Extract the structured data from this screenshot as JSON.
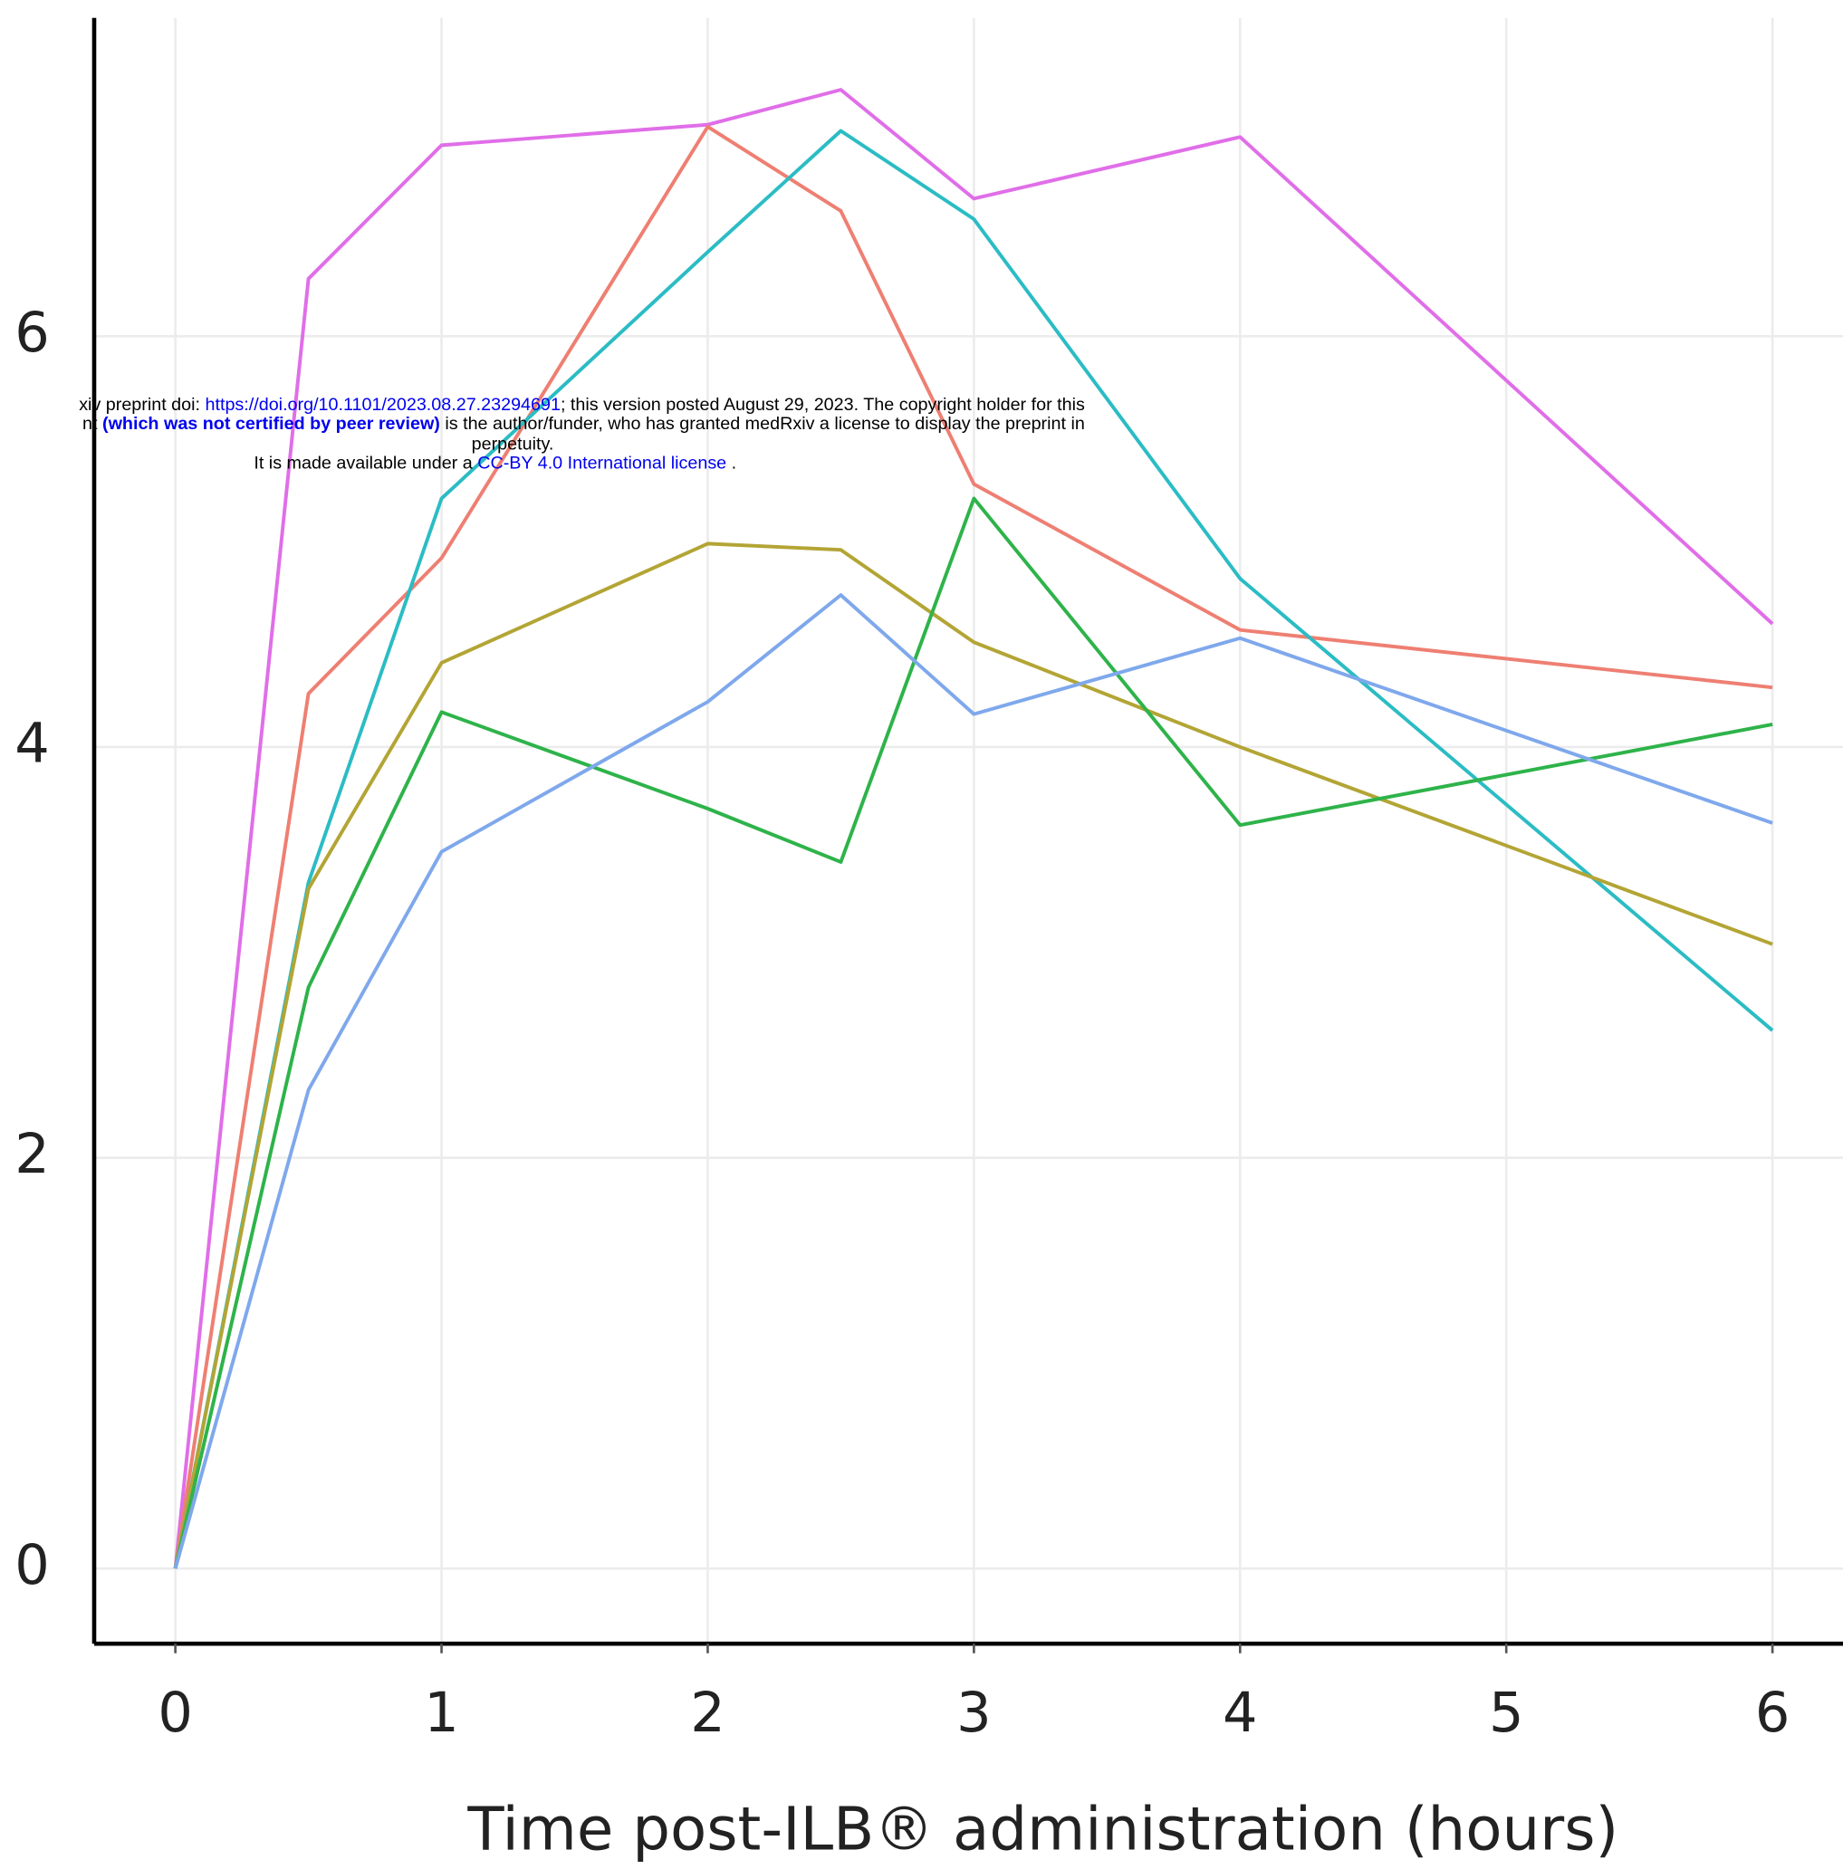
{
  "chart_data": {
    "type": "line",
    "xlabel": "Time post-ILB® administration (hours)",
    "x": [
      0,
      0.5,
      1,
      2,
      2.5,
      3,
      4,
      6
    ],
    "xlim": [
      -0.305,
      6.265
    ],
    "xticks": [
      0,
      1,
      2,
      3,
      4,
      5,
      6
    ],
    "ylim": [
      -0.366,
      7.55
    ],
    "yticks": [
      0,
      2,
      4,
      6
    ],
    "grid": true,
    "series": [
      {
        "color": "#e06ee8",
        "values": [
          0,
          6.28,
          6.93,
          7.03,
          7.2,
          6.67,
          6.97,
          4.6
        ]
      },
      {
        "color": "#ee7f72",
        "values": [
          0,
          4.26,
          4.92,
          7.02,
          6.61,
          5.28,
          4.57,
          4.29
        ]
      },
      {
        "color": "#2bbcc4",
        "values": [
          0,
          3.34,
          5.21,
          6.41,
          7.0,
          6.57,
          4.82,
          2.62
        ]
      },
      {
        "color": "#b3a535",
        "values": [
          0,
          3.31,
          4.41,
          4.99,
          4.96,
          4.51,
          4.0,
          3.04
        ]
      },
      {
        "color": "#2eb34a",
        "values": [
          0,
          2.83,
          4.17,
          3.7,
          3.44,
          5.21,
          3.62,
          4.11
        ]
      },
      {
        "color": "#7fa8ec",
        "values": [
          0,
          2.33,
          3.49,
          4.22,
          4.74,
          4.16,
          4.53,
          3.63
        ]
      }
    ],
    "watermark": {
      "line1": [
        "xiv preprint doi: ",
        "https://doi.org/10.1101/2023.08.27.23294691",
        "; this version posted August 29, 2023. The copyright holder for this"
      ],
      "line2": [
        "nt  ",
        "(which was not certified by peer review)",
        " is the author/funder, who has granted medRxiv a license to display the preprint in"
      ],
      "line3": "perpetuity.",
      "line4": [
        "It is made available under a ",
        "CC-BY 4.0 International license",
        " ."
      ]
    }
  }
}
